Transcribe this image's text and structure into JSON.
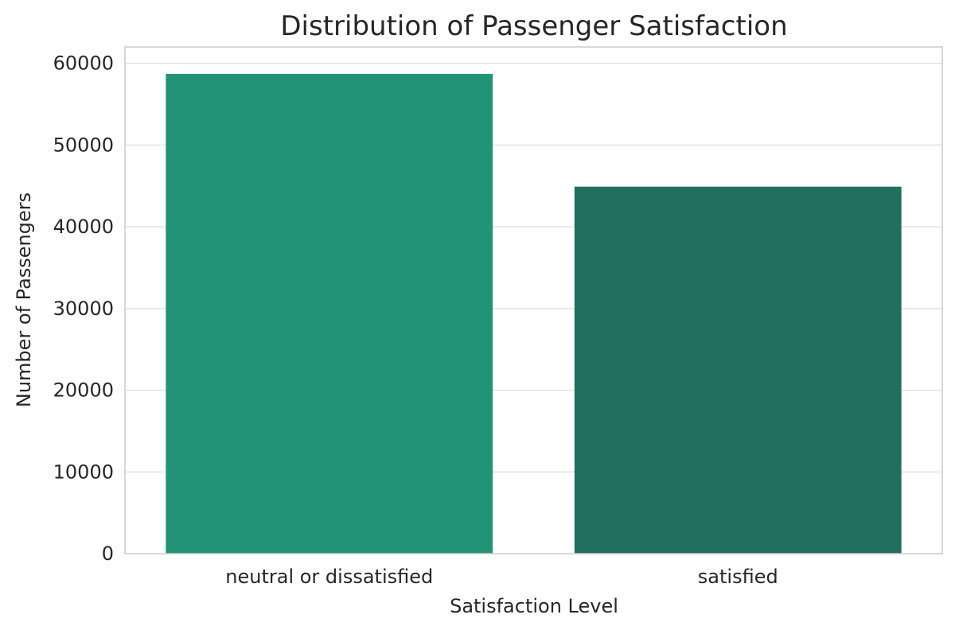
{
  "chart_data": {
    "type": "bar",
    "title": "Distribution of Passenger Satisfaction",
    "xlabel": "Satisfaction Level",
    "ylabel": "Number of Passengers",
    "categories": [
      "neutral or dissatisfied",
      "satisfied"
    ],
    "values": [
      58700,
      44900
    ],
    "colors": [
      "#239378",
      "#226e5f"
    ],
    "ylim": [
      0,
      62000
    ],
    "yticks": [
      0,
      10000,
      20000,
      30000,
      40000,
      50000,
      60000
    ],
    "ytick_labels": [
      "0",
      "10000",
      "20000",
      "30000",
      "40000",
      "50000",
      "60000"
    ],
    "grid": "horizontal",
    "legend": "none"
  }
}
